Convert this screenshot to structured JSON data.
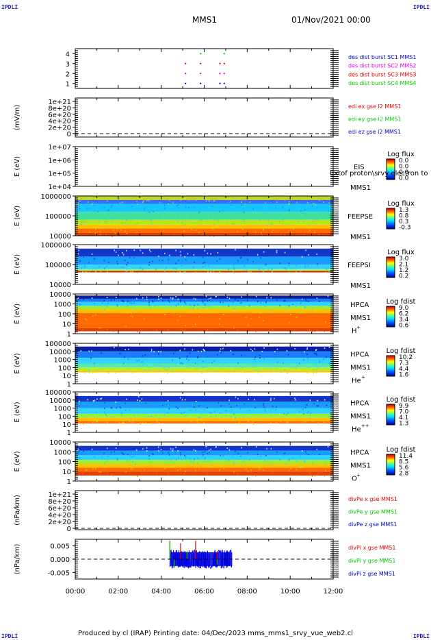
{
  "header": {
    "corner_label": "IPDLI",
    "title": "MMS1",
    "datetime": "01/Nov/2021 00:00"
  },
  "footer": {
    "text": "Produced by cl (IRAP)   Printing date: 04/Dec/2023   mms_mms1_srvy_vue_web2.cl"
  },
  "x_axis": {
    "ticks": [
      "00:00",
      "02:00",
      "04:00",
      "06:00",
      "08:00",
      "10:00",
      "12:00"
    ]
  },
  "colors": {
    "blue": "#0000c8",
    "magenta": "#e000e0",
    "red": "#e00000",
    "green": "#00c800"
  },
  "chart_data": [
    {
      "type": "scatter",
      "id": "burst",
      "xlim": [
        0,
        12
      ],
      "ylim": [
        0.5,
        4.5
      ],
      "yticks": [
        "1",
        "2",
        "3",
        "4"
      ],
      "legend": [
        "des dist burst SC1 MMS1",
        "des dist burst SC2 MMS2",
        "des dist burst SC3 MMS3",
        "des dist burst SC4 MMS4"
      ],
      "legend_colors": [
        "#0000c8",
        "#e000e0",
        "#e00000",
        "#00c800"
      ],
      "series": [
        {
          "x": [
            5.1,
            5.8,
            6.7,
            6.9
          ],
          "y": [
            1,
            1,
            1,
            1
          ]
        },
        {
          "x": [
            5.1,
            5.8,
            6.7,
            6.9
          ],
          "y": [
            2,
            2,
            2,
            2
          ]
        },
        {
          "x": [
            5.1,
            5.8,
            6.7,
            6.9
          ],
          "y": [
            3,
            3,
            3,
            3
          ]
        },
        {
          "x": [
            5.8,
            6.9
          ],
          "y": [
            4,
            4
          ]
        }
      ]
    },
    {
      "type": "line",
      "id": "edi",
      "ylabel": "(mV/m)",
      "yticks": [
        "1e+21",
        "8e+20",
        "6e+20",
        "4e+20",
        "2e+20",
        "0"
      ],
      "legend": [
        "edi ex gse l2 MMS1",
        "edi ey gse l2 MMS1",
        "edi ez gse l2 MMS1"
      ],
      "legend_colors": [
        "#e00000",
        "#00c800",
        "#0000c8"
      ],
      "zero_line": true
    },
    {
      "type": "heatmap",
      "id": "eis",
      "ylabel": "E (eV)",
      "yticks": [
        "1e+07",
        "1e+06",
        "1e+05",
        "1e+04"
      ],
      "instrument": "EIS",
      "spacecraft": "MMS1",
      "overlay_text": "Extof proton\\srvy electron to",
      "colorbar_title": "Log flux",
      "colorbar_ticks": [
        "0.0",
        "0.0",
        "0.0",
        "0.0"
      ],
      "empty": true
    },
    {
      "type": "heatmap",
      "id": "feepse",
      "ylabel": "E (eV)",
      "yticks": [
        "1000000",
        "100000",
        "10000"
      ],
      "instrument": "FEEPSE",
      "spacecraft": "MMS1",
      "colorbar_title": "Log flux",
      "colorbar_ticks": [
        "1.3",
        "0.8",
        "0.3",
        "-0.3"
      ],
      "x_end": 12,
      "bands": [
        {
          "from": 0.0,
          "to": 0.1,
          "color": "#c6d81e"
        },
        {
          "from": 0.1,
          "to": 0.2,
          "color": "#2f72ff"
        },
        {
          "from": 0.2,
          "to": 0.4,
          "color": "#14c8ff"
        },
        {
          "from": 0.4,
          "to": 0.6,
          "color": "#3fe0a0"
        },
        {
          "from": 0.6,
          "to": 0.72,
          "color": "#b6e61a"
        },
        {
          "from": 0.72,
          "to": 0.82,
          "color": "#ffc000"
        },
        {
          "from": 0.82,
          "to": 0.93,
          "color": "#ff6a00"
        },
        {
          "from": 0.93,
          "to": 1.0,
          "color": "#d83a00"
        }
      ]
    },
    {
      "type": "heatmap",
      "id": "feepsi",
      "ylabel": "E (eV)",
      "yticks": [
        "1000000",
        "100000",
        "10000"
      ],
      "instrument": "FEEPSI",
      "spacecraft": "MMS1",
      "colorbar_title": "Log flux",
      "colorbar_ticks": [
        "3.0",
        "2.1",
        "1.2",
        "0.2"
      ],
      "x_end": 12,
      "bands": [
        {
          "from": 0.0,
          "to": 0.1,
          "color": "#ffffff"
        },
        {
          "from": 0.1,
          "to": 0.3,
          "color": "#1436c8"
        },
        {
          "from": 0.3,
          "to": 0.5,
          "color": "#1a9cff"
        },
        {
          "from": 0.5,
          "to": 0.62,
          "color": "#38d2ff"
        },
        {
          "from": 0.62,
          "to": 0.66,
          "color": "#a0ff40"
        },
        {
          "from": 0.66,
          "to": 0.7,
          "color": "#d82000"
        },
        {
          "from": 0.7,
          "to": 1.0,
          "color": "#ffffff"
        }
      ]
    },
    {
      "type": "heatmap",
      "id": "hpca_h",
      "ylabel": "E (eV)",
      "yticks": [
        "10000",
        "1000",
        "100",
        "10",
        "1"
      ],
      "instrument": "HPCA",
      "spacecraft": "MMS1",
      "species": "H",
      "species_charge": "+",
      "colorbar_title": "Log fdist",
      "colorbar_ticks": [
        "9.0",
        "6.2",
        "3.4",
        "0.6"
      ],
      "x_end": 12,
      "bands": [
        {
          "from": 0.0,
          "to": 0.04,
          "color": "#ffffff"
        },
        {
          "from": 0.04,
          "to": 0.12,
          "color": "#0a1ea0"
        },
        {
          "from": 0.12,
          "to": 0.2,
          "color": "#1a7cff"
        },
        {
          "from": 0.2,
          "to": 0.3,
          "color": "#30d2ff"
        },
        {
          "from": 0.3,
          "to": 0.38,
          "color": "#9aee36"
        },
        {
          "from": 0.38,
          "to": 0.48,
          "color": "#ffc000"
        },
        {
          "from": 0.48,
          "to": 0.86,
          "color": "#ff6a00"
        },
        {
          "from": 0.86,
          "to": 0.94,
          "color": "#e04000"
        },
        {
          "from": 0.94,
          "to": 1.0,
          "color": "#ffffff"
        }
      ]
    },
    {
      "type": "heatmap",
      "id": "hpca_he",
      "ylabel": "E (eV)",
      "yticks": [
        "100000",
        "10000",
        "1000",
        "100",
        "10",
        "1"
      ],
      "instrument": "HPCA",
      "spacecraft": "MMS1",
      "species": "He",
      "species_charge": "+",
      "colorbar_title": "Log fdist",
      "colorbar_ticks": [
        "10.2",
        "7.3",
        "4.4",
        "1.6"
      ],
      "x_end": 12,
      "bands": [
        {
          "from": 0.0,
          "to": 0.08,
          "color": "#ffffff"
        },
        {
          "from": 0.08,
          "to": 0.2,
          "color": "#0a1ea0"
        },
        {
          "from": 0.2,
          "to": 0.36,
          "color": "#1a7cff"
        },
        {
          "from": 0.36,
          "to": 0.5,
          "color": "#30d2ff"
        },
        {
          "from": 0.5,
          "to": 0.6,
          "color": "#5ae6b0"
        },
        {
          "from": 0.6,
          "to": 0.68,
          "color": "#b6ee28"
        },
        {
          "from": 0.68,
          "to": 0.72,
          "color": "#ffc000"
        },
        {
          "from": 0.72,
          "to": 1.0,
          "color": "#ffffff"
        }
      ]
    },
    {
      "type": "heatmap",
      "id": "hpca_hepp",
      "ylabel": "E (eV)",
      "yticks": [
        "100000",
        "10000",
        "1000",
        "100",
        "10",
        "1"
      ],
      "instrument": "HPCA",
      "spacecraft": "MMS1",
      "species": "He",
      "species_charge": "++",
      "colorbar_title": "Log fdist",
      "colorbar_ticks": [
        "9.9",
        "7.0",
        "4.1",
        "1.3"
      ],
      "x_end": 12,
      "bands": [
        {
          "from": 0.0,
          "to": 0.1,
          "color": "#ffffff"
        },
        {
          "from": 0.1,
          "to": 0.24,
          "color": "#1436c8"
        },
        {
          "from": 0.24,
          "to": 0.4,
          "color": "#1a9cff"
        },
        {
          "from": 0.4,
          "to": 0.54,
          "color": "#30d2ff"
        },
        {
          "from": 0.54,
          "to": 0.64,
          "color": "#9aee36"
        },
        {
          "from": 0.64,
          "to": 0.72,
          "color": "#ffc000"
        },
        {
          "from": 0.72,
          "to": 0.78,
          "color": "#ff6a00"
        },
        {
          "from": 0.78,
          "to": 1.0,
          "color": "#ffffff"
        }
      ]
    },
    {
      "type": "heatmap",
      "id": "hpca_o",
      "ylabel": "E (eV)",
      "yticks": [
        "10000",
        "1000",
        "100",
        "10",
        "1"
      ],
      "instrument": "HPCA",
      "spacecraft": "MMS1",
      "species": "O",
      "species_charge": "+",
      "colorbar_title": "Log fdist",
      "colorbar_ticks": [
        "11.4",
        "8.5",
        "5.6",
        "2.8"
      ],
      "x_end": 12,
      "bands": [
        {
          "from": 0.0,
          "to": 0.1,
          "color": "#ffffff"
        },
        {
          "from": 0.1,
          "to": 0.22,
          "color": "#1436c8"
        },
        {
          "from": 0.22,
          "to": 0.34,
          "color": "#1a9cff"
        },
        {
          "from": 0.34,
          "to": 0.46,
          "color": "#30d2ff"
        },
        {
          "from": 0.46,
          "to": 0.56,
          "color": "#9aee36"
        },
        {
          "from": 0.56,
          "to": 0.66,
          "color": "#ffc000"
        },
        {
          "from": 0.66,
          "to": 0.76,
          "color": "#ff6a00"
        },
        {
          "from": 0.76,
          "to": 0.86,
          "color": "#e04000"
        },
        {
          "from": 0.86,
          "to": 1.0,
          "color": "#ffffff"
        }
      ]
    },
    {
      "type": "line",
      "id": "divpe",
      "ylabel": "(nPa/km)",
      "yticks": [
        "1e+21",
        "8e+20",
        "6e+20",
        "4e+20",
        "2e+20",
        "0"
      ],
      "legend": [
        "divPe x gse MMS1",
        "divPe y gse MMS1",
        "divPe z gse MMS1"
      ],
      "legend_colors": [
        "#e00000",
        "#00c800",
        "#0000c8"
      ],
      "zero_line": true
    },
    {
      "type": "line",
      "id": "divpi",
      "ylabel": "(nPa/km)",
      "yticks": [
        "0.005",
        "0.000",
        "-0.005"
      ],
      "ylim": [
        -0.0075,
        0.0075
      ],
      "legend": [
        "divPi x gse MMS1",
        "divPi y gse MMS1",
        "divPi z gse MMS1"
      ],
      "legend_colors": [
        "#e00000",
        "#00c800",
        "#0000c8"
      ],
      "zero_line": true,
      "series": [
        {
          "name": "divPi x gse MMS1",
          "x": [
            4.4,
            4.9,
            5.6,
            6.6
          ],
          "y": [
            0.007,
            0.006,
            0.007,
            0.003
          ]
        },
        {
          "name": "divPi y gse MMS1",
          "x": [
            4.4,
            4.6,
            5.2,
            6.6
          ],
          "y": [
            0.007,
            -0.003,
            0.003,
            -0.002
          ]
        },
        {
          "name": "divPi z gse MMS1",
          "x_range": [
            4.4,
            7.3
          ],
          "amplitude": 0.0035
        }
      ]
    }
  ]
}
